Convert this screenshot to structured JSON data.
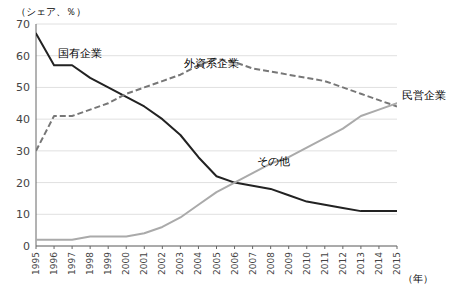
{
  "chart_data": {
    "type": "line",
    "y_label": "（シェア、％）",
    "x_label": "（年）",
    "x": [
      1995,
      1996,
      1997,
      1998,
      1999,
      2000,
      2001,
      2002,
      2003,
      2004,
      2005,
      2006,
      2007,
      2008,
      2009,
      2010,
      2011,
      2012,
      2013,
      2014,
      2015
    ],
    "series": [
      {
        "name": "国有企業",
        "color": "#222222",
        "line_style": "solid",
        "values": [
          67,
          57,
          57,
          53,
          50,
          47,
          44,
          40,
          35,
          28,
          22,
          20,
          19,
          18,
          16,
          14,
          13,
          12,
          11,
          11,
          11
        ]
      },
      {
        "name": "外資系企業",
        "color": "#777777",
        "line_style": "dashed",
        "values": [
          30,
          41,
          41,
          43,
          45,
          48,
          50,
          52,
          54,
          57,
          59,
          58,
          56,
          55,
          54,
          53,
          52,
          50,
          48,
          46,
          44
        ]
      },
      {
        "name": "その他",
        "color": "#aaaaaa",
        "line_style": "solid",
        "values": [
          2,
          2,
          2,
          3,
          3,
          3,
          4,
          6,
          9,
          13,
          17,
          20,
          23,
          26,
          28,
          31,
          34,
          37,
          41,
          43,
          45
        ]
      }
    ],
    "annotations": [
      {
        "text": "民営企業"
      }
    ],
    "xlim": [
      1995,
      2015
    ],
    "xticks": [
      1995,
      1996,
      1997,
      1998,
      1999,
      2000,
      2001,
      2002,
      2003,
      2004,
      2005,
      2006,
      2007,
      2008,
      2009,
      2010,
      2011,
      2012,
      2013,
      2014,
      2015
    ],
    "ylim": [
      0,
      70
    ],
    "yticks": [
      0,
      10,
      20,
      30,
      40,
      50,
      60,
      70
    ],
    "grid": true
  }
}
